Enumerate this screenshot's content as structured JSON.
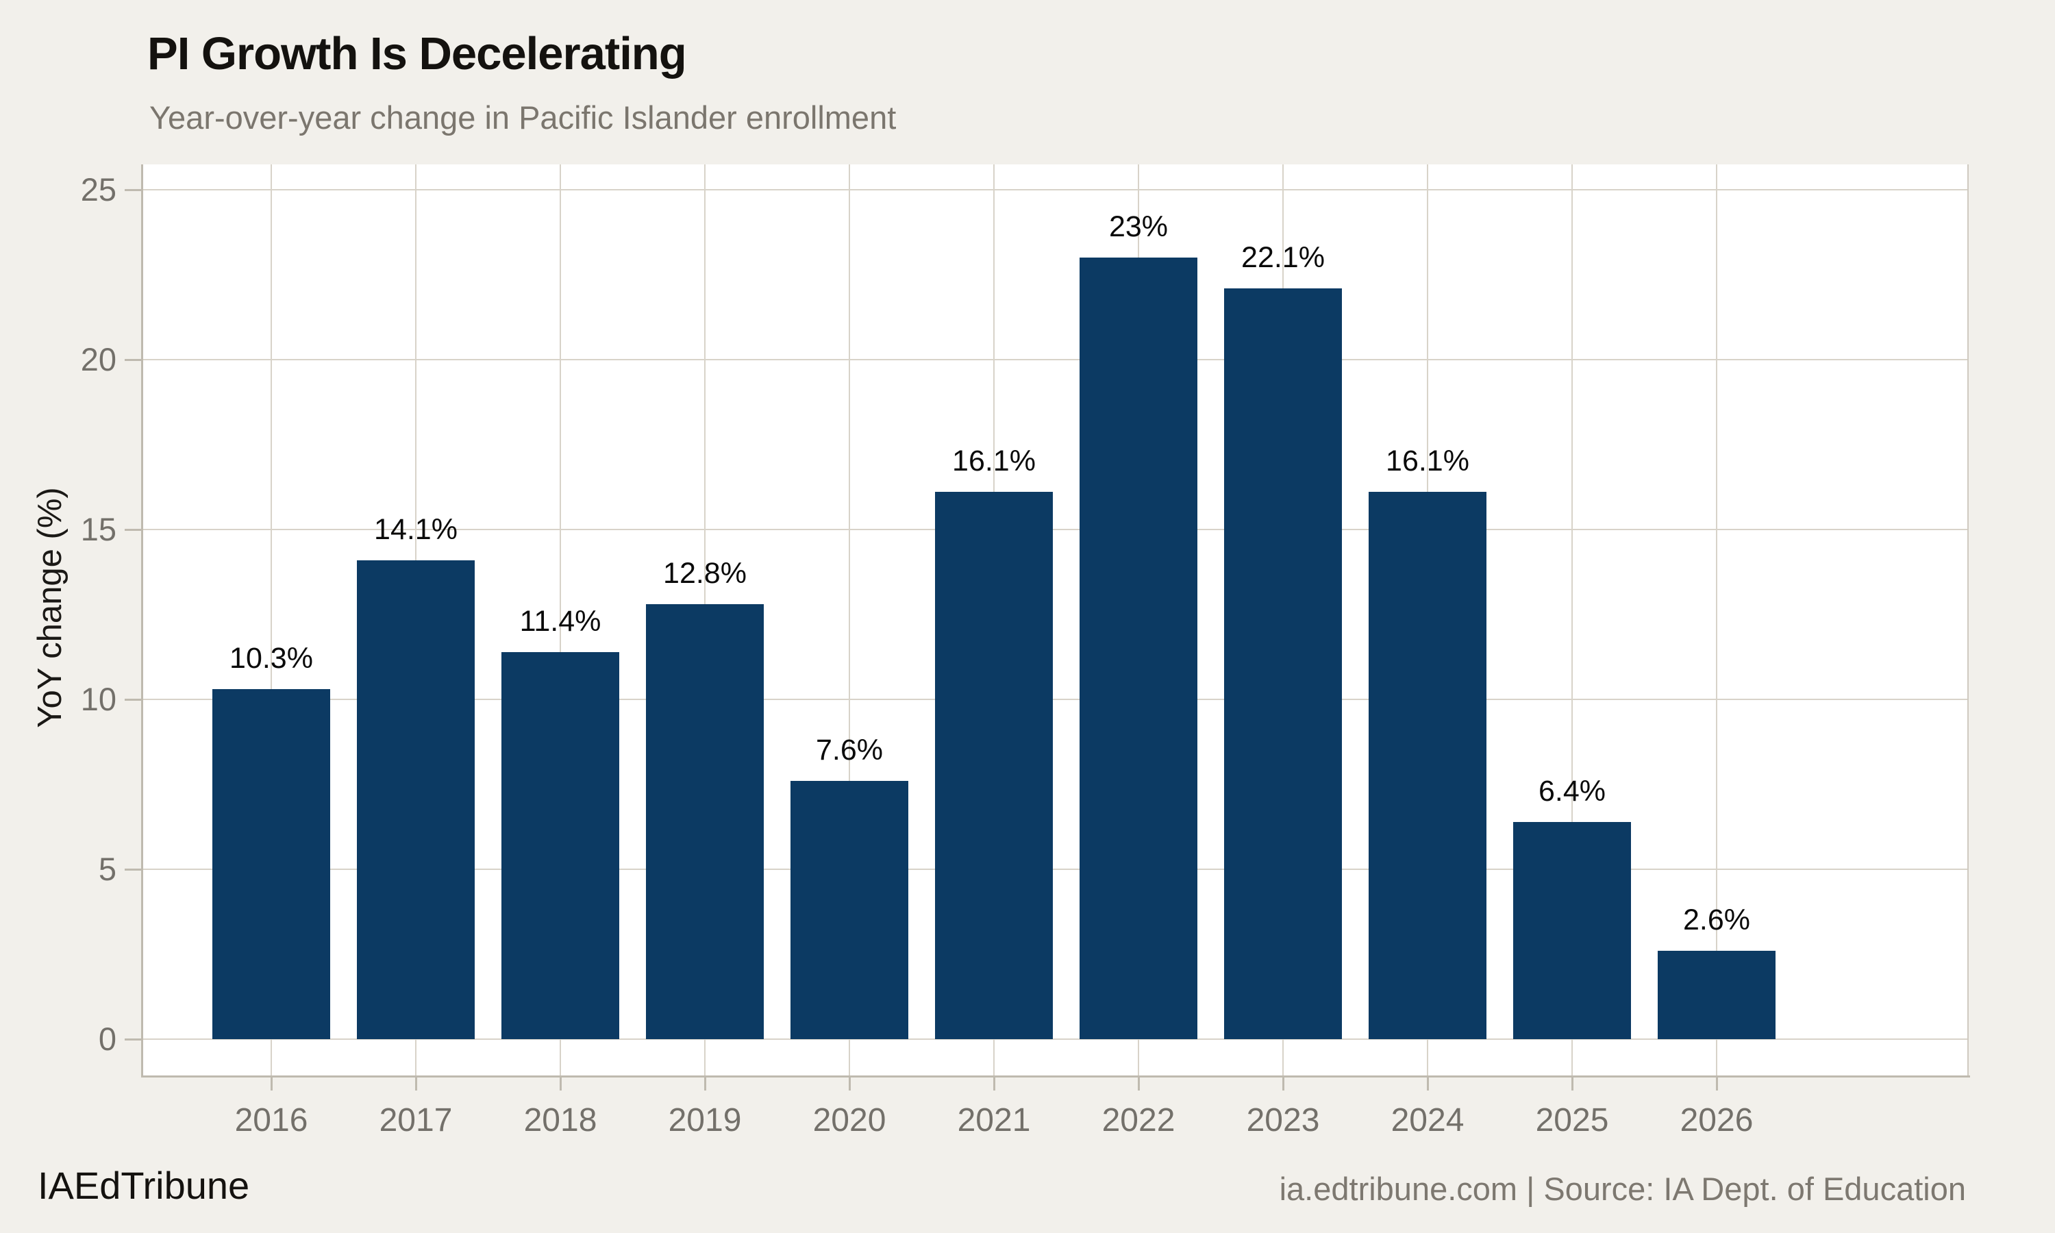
{
  "chart_data": {
    "type": "bar",
    "title": "PI Growth Is Decelerating",
    "subtitle": "Year-over-year change in Pacific Islander enrollment",
    "categories": [
      "2016",
      "2017",
      "2018",
      "2019",
      "2020",
      "2021",
      "2022",
      "2023",
      "2024",
      "2025",
      "2026"
    ],
    "values": [
      10.3,
      14.1,
      11.4,
      12.8,
      7.6,
      16.1,
      23,
      22.1,
      16.1,
      6.4,
      2.6
    ],
    "bar_labels": [
      "10.3%",
      "14.1%",
      "11.4%",
      "12.8%",
      "7.6%",
      "16.1%",
      "23%",
      "22.1%",
      "16.1%",
      "6.4%",
      "2.6%"
    ],
    "xlabel": "",
    "ylabel": "YoY change (%)",
    "ylim": [
      0,
      25
    ],
    "yticks": [
      0,
      5,
      10,
      15,
      20,
      25
    ],
    "grid": "on",
    "legend": "none",
    "bar_color": "#0C3A63"
  },
  "footer": {
    "left": "IAEdTribune",
    "right": "ia.edtribune.com | Source: IA Dept. of Education"
  },
  "colors": {
    "background": "#F2F0EB",
    "plot_background": "#FFFFFF",
    "bar": "#0C3A63",
    "gridline": "#D8D3C9",
    "spine": "#BFBAAF",
    "tick_label": "#73706A",
    "title": "#14120F",
    "subtitle": "#7B766E",
    "value_label": "#0A0A0A",
    "footer_right": "#7D7870"
  }
}
